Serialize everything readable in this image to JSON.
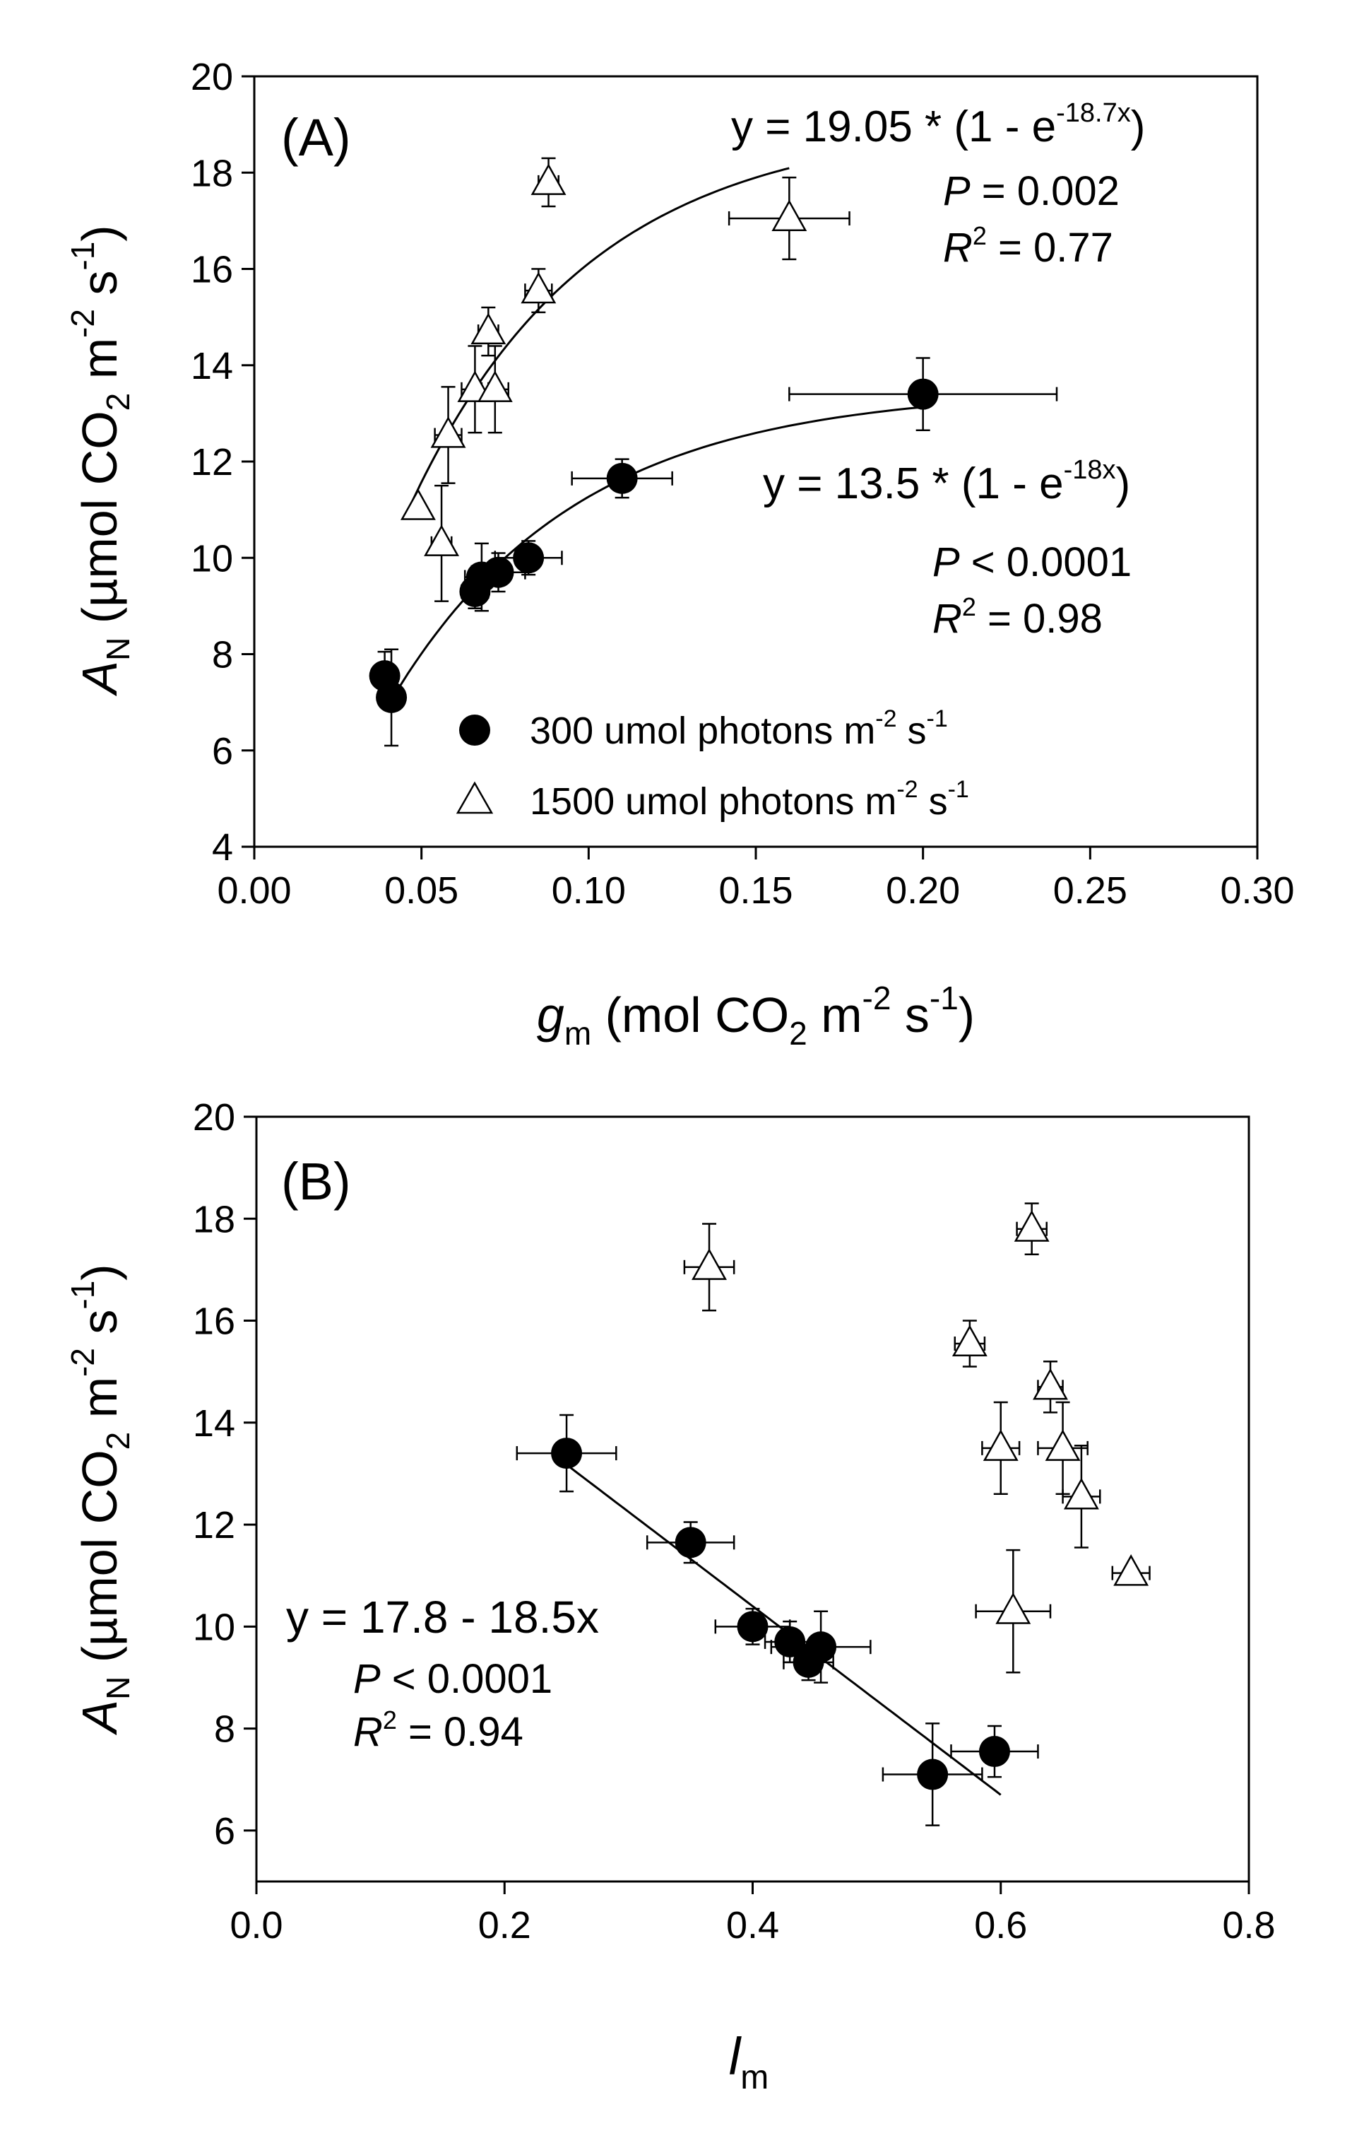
{
  "chart_data": [
    {
      "panel_label": "(A)",
      "type": "scatter",
      "xlim": [
        0,
        0.3
      ],
      "ylim": [
        4,
        20
      ],
      "x_ticks": [
        "0.00",
        "0.05",
        "0.10",
        "0.15",
        "0.20",
        "0.25",
        "0.30"
      ],
      "x_tick_values": [
        0,
        0.05,
        0.1,
        0.15,
        0.2,
        0.25,
        0.3
      ],
      "y_ticks": [
        "4",
        "6",
        "8",
        "10",
        "12",
        "14",
        "16",
        "18",
        "20"
      ],
      "y_tick_values": [
        4,
        6,
        8,
        10,
        12,
        14,
        16,
        18,
        20
      ],
      "xlabel": {
        "main": "g",
        "sub": "m",
        "rest": " (mol CO",
        "sub2": "2",
        "rest2": " m",
        "sup1": "-2",
        "rest3": " s",
        "sup2": "-1",
        "rest4": ")"
      },
      "ylabel": {
        "main": "A",
        "sub": "N",
        "rest": " (µmol CO",
        "sub2": "2",
        "rest2": " m",
        "sup1": "-2",
        "rest3": " s",
        "sup2": "-1",
        "rest4": ")"
      },
      "legend": [
        {
          "marker": "circle",
          "text": "300 umol photons m",
          "sup1": "-2",
          "mid": " s",
          "sup2": "-1"
        },
        {
          "marker": "triangle",
          "text": "1500 umol photons m",
          "sup1": "-2",
          "mid": " s",
          "sup2": "-1"
        }
      ],
      "series": [
        {
          "name": "300 umol photons m-2 s-1",
          "marker": "filled-circle",
          "points": [
            {
              "x": 0.039,
              "y": 7.55,
              "xerr": 0.003,
              "yerr": 0.5
            },
            {
              "x": 0.041,
              "y": 7.1,
              "xerr": 0.003,
              "yerr": 1.0
            },
            {
              "x": 0.066,
              "y": 9.3,
              "xerr": 0.004,
              "yerr": 0.35
            },
            {
              "x": 0.068,
              "y": 9.6,
              "xerr": 0.005,
              "yerr": 0.7
            },
            {
              "x": 0.073,
              "y": 9.7,
              "xerr": 0.008,
              "yerr": 0.4
            },
            {
              "x": 0.082,
              "y": 10.0,
              "xerr": 0.01,
              "yerr": 0.35
            },
            {
              "x": 0.11,
              "y": 11.65,
              "xerr": 0.015,
              "yerr": 0.4
            },
            {
              "x": 0.2,
              "y": 13.4,
              "xerr": 0.04,
              "yerr": 0.75
            }
          ],
          "fit": {
            "type": "exp_rise",
            "a": 13.5,
            "b": 18,
            "x_start": 0.04,
            "x_end": 0.2
          }
        },
        {
          "name": "1500 umol photons m-2 s-1",
          "marker": "open-triangle",
          "points": [
            {
              "x": 0.049,
              "y": 11.05,
              "xerr": 0.0,
              "yerr": 0.0
            },
            {
              "x": 0.056,
              "y": 10.3,
              "xerr": 0.003,
              "yerr": 1.2
            },
            {
              "x": 0.058,
              "y": 12.55,
              "xerr": 0.004,
              "yerr": 1.0
            },
            {
              "x": 0.066,
              "y": 13.5,
              "xerr": 0.004,
              "yerr": 0.9
            },
            {
              "x": 0.07,
              "y": 14.7,
              "xerr": 0.003,
              "yerr": 0.5
            },
            {
              "x": 0.072,
              "y": 13.5,
              "xerr": 0.004,
              "yerr": 0.9
            },
            {
              "x": 0.085,
              "y": 15.55,
              "xerr": 0.004,
              "yerr": 0.45
            },
            {
              "x": 0.088,
              "y": 17.8,
              "xerr": 0.003,
              "yerr": 0.5
            },
            {
              "x": 0.16,
              "y": 17.05,
              "xerr": 0.018,
              "yerr": 0.85
            }
          ],
          "fit": {
            "type": "exp_rise",
            "a": 19.05,
            "b": 18.7,
            "x_start": 0.047,
            "x_end": 0.16
          }
        }
      ],
      "annotations": [
        {
          "id": "eq_high",
          "prefix": "y = 19.05 * (1 - e",
          "sup": "-18.7x",
          "suffix": ")"
        },
        {
          "id": "p_high",
          "label": "P",
          "value": " = 0.002"
        },
        {
          "id": "r2_high",
          "label": "R",
          "sup": "2",
          "value": " = 0.77"
        },
        {
          "id": "eq_low",
          "prefix": "y = 13.5 * (1 - e",
          "sup": "-18x",
          "suffix": ")"
        },
        {
          "id": "p_low",
          "label": "P",
          "value": " < 0.0001"
        },
        {
          "id": "r2_low",
          "label": "R",
          "sup": "2",
          "value": " = 0.98"
        }
      ]
    },
    {
      "panel_label": "(B)",
      "type": "scatter",
      "xlim": [
        0,
        0.8
      ],
      "ylim": [
        5,
        20
      ],
      "x_ticks": [
        "0.0",
        "0.2",
        "0.4",
        "0.6",
        "0.8"
      ],
      "x_tick_values": [
        0,
        0.2,
        0.4,
        0.6,
        0.8
      ],
      "y_ticks": [
        "6",
        "8",
        "10",
        "12",
        "14",
        "16",
        "18",
        "20"
      ],
      "y_tick_values": [
        6,
        8,
        10,
        12,
        14,
        16,
        18,
        20
      ],
      "xlabel": {
        "main": "l",
        "sub": "m"
      },
      "ylabel": {
        "main": "A",
        "sub": "N",
        "rest": " (µmol CO",
        "sub2": "2",
        "rest2": " m",
        "sup1": "-2",
        "rest3": " s",
        "sup2": "-1",
        "rest4": ")"
      },
      "series": [
        {
          "name": "300 umol photons m-2 s-1",
          "marker": "filled-circle",
          "points": [
            {
              "x": 0.25,
              "y": 13.4,
              "xerr": 0.04,
              "yerr": 0.75
            },
            {
              "x": 0.35,
              "y": 11.65,
              "xerr": 0.035,
              "yerr": 0.4
            },
            {
              "x": 0.4,
              "y": 10.0,
              "xerr": 0.03,
              "yerr": 0.35
            },
            {
              "x": 0.43,
              "y": 9.7,
              "xerr": 0.02,
              "yerr": 0.4
            },
            {
              "x": 0.445,
              "y": 9.3,
              "xerr": 0.02,
              "yerr": 0.35
            },
            {
              "x": 0.455,
              "y": 9.6,
              "xerr": 0.04,
              "yerr": 0.7
            },
            {
              "x": 0.545,
              "y": 7.1,
              "xerr": 0.04,
              "yerr": 1.0
            },
            {
              "x": 0.595,
              "y": 7.55,
              "xerr": 0.035,
              "yerr": 0.5
            }
          ],
          "fit": {
            "type": "linear",
            "intercept": 17.8,
            "slope": -18.5,
            "x_start": 0.25,
            "x_end": 0.6
          }
        },
        {
          "name": "1500 umol photons m-2 s-1",
          "marker": "open-triangle",
          "points": [
            {
              "x": 0.365,
              "y": 17.05,
              "xerr": 0.02,
              "yerr": 0.85
            },
            {
              "x": 0.575,
              "y": 15.55,
              "xerr": 0.012,
              "yerr": 0.45
            },
            {
              "x": 0.6,
              "y": 13.5,
              "xerr": 0.015,
              "yerr": 0.9
            },
            {
              "x": 0.61,
              "y": 10.3,
              "xerr": 0.03,
              "yerr": 1.2
            },
            {
              "x": 0.625,
              "y": 17.8,
              "xerr": 0.012,
              "yerr": 0.5
            },
            {
              "x": 0.64,
              "y": 14.7,
              "xerr": 0.01,
              "yerr": 0.5
            },
            {
              "x": 0.65,
              "y": 13.5,
              "xerr": 0.02,
              "yerr": 0.9
            },
            {
              "x": 0.665,
              "y": 12.55,
              "xerr": 0.015,
              "yerr": 1.0
            },
            {
              "x": 0.705,
              "y": 11.05,
              "xerr": 0.015,
              "yerr": 0.0
            }
          ]
        }
      ],
      "annotations": [
        {
          "id": "eq_lin",
          "prefix": "y = 17.8 - 18.5x"
        },
        {
          "id": "p_lin",
          "label": "P",
          "value": " < 0.0001"
        },
        {
          "id": "r2_lin",
          "label": "R",
          "sup": "2",
          "value": " = 0.94"
        }
      ]
    }
  ]
}
